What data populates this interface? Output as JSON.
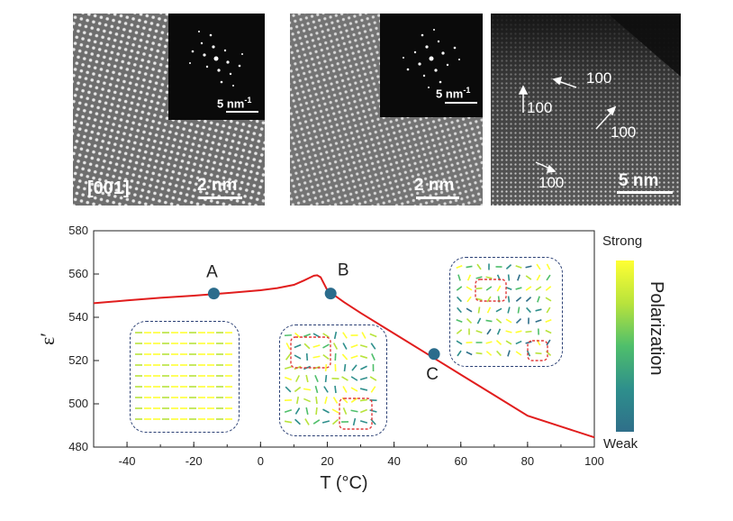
{
  "panels": {
    "panel1": {
      "zone_axis": "[001]",
      "scale_main": "2 nm",
      "scale_inset": "5 nm",
      "scale_inset_sup": "-1"
    },
    "panel2": {
      "scale_main": "2 nm",
      "scale_inset": "5 nm",
      "scale_inset_sup": "-1"
    },
    "panel3": {
      "scale_main": "5 nm",
      "directions": [
        "100",
        "100",
        "100",
        "100"
      ]
    }
  },
  "colorbar": {
    "top_label": "Strong",
    "bottom_label": "Weak",
    "title": "Polarization",
    "colors": [
      "#ffff33",
      "#b8e33c",
      "#4fbf6b",
      "#2e8f8c",
      "#2f6f8a"
    ]
  },
  "colors": {
    "curve": "#e11d1d",
    "marker": "#2b6c8c",
    "box_border": "#2a3f74",
    "domain_box": "#e23a3a"
  },
  "chart_data": {
    "type": "line",
    "title": "",
    "xlabel": "T (°C)",
    "ylabel": "ε′",
    "xlim": [
      -50,
      100
    ],
    "ylim": [
      480,
      580
    ],
    "xticks": [
      -40,
      -20,
      0,
      20,
      40,
      60,
      80,
      100
    ],
    "yticks": [
      480,
      500,
      520,
      540,
      560,
      580
    ],
    "grid": false,
    "series": [
      {
        "x": [
          -50,
          -40,
          -30,
          -20,
          -10,
          0,
          5,
          10,
          13,
          15,
          16,
          17,
          18,
          19,
          20,
          25,
          30,
          40,
          50,
          60,
          70,
          80,
          90,
          100
        ],
        "y": [
          546.5,
          547.8,
          549,
          550,
          551.2,
          552.5,
          553.5,
          555,
          557,
          558.5,
          559.2,
          559.4,
          558.5,
          555.5,
          552.5,
          547,
          542,
          532.5,
          523,
          513.5,
          504,
          494.5,
          489.5,
          484.5
        ]
      }
    ],
    "points": [
      {
        "label": "A",
        "x": -14,
        "y": 551
      },
      {
        "label": "B",
        "x": 21,
        "y": 551
      },
      {
        "label": "C",
        "x": 52,
        "y": 523
      }
    ]
  }
}
